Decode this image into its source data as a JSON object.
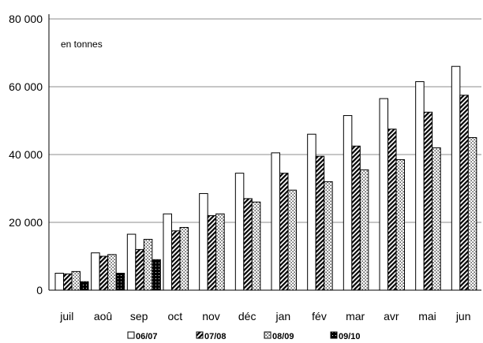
{
  "chart_data": {
    "type": "bar",
    "unit_label": "en tonnes",
    "categories": [
      "juil",
      "aoû",
      "sep",
      "oct",
      "nov",
      "déc",
      "jan",
      "fév",
      "mar",
      "avr",
      "mai",
      "jun"
    ],
    "y_ticks": [
      "0",
      "20 000",
      "40 000",
      "60 000",
      "80 000"
    ],
    "ylim": [
      0,
      80000
    ],
    "grid": "horizontal",
    "legend_position": "bottom",
    "series": [
      {
        "name": "06/07",
        "pattern": "empty",
        "values": [
          5000,
          11000,
          16500,
          22500,
          28500,
          34500,
          40500,
          46000,
          51500,
          56500,
          61500,
          66000
        ]
      },
      {
        "name": "07/08",
        "pattern": "diagonal",
        "values": [
          4800,
          10000,
          12000,
          17500,
          22000,
          27000,
          34500,
          39500,
          42500,
          47500,
          52500,
          57500
        ]
      },
      {
        "name": "08/09",
        "pattern": "dotted",
        "values": [
          5500,
          10500,
          15000,
          18500,
          22500,
          26000,
          29500,
          32000,
          35500,
          38500,
          42000,
          45000
        ]
      },
      {
        "name": "09/10",
        "pattern": "solid-dark",
        "values": [
          2500,
          5000,
          9000,
          null,
          null,
          null,
          null,
          null,
          null,
          null,
          null,
          null
        ]
      }
    ]
  }
}
